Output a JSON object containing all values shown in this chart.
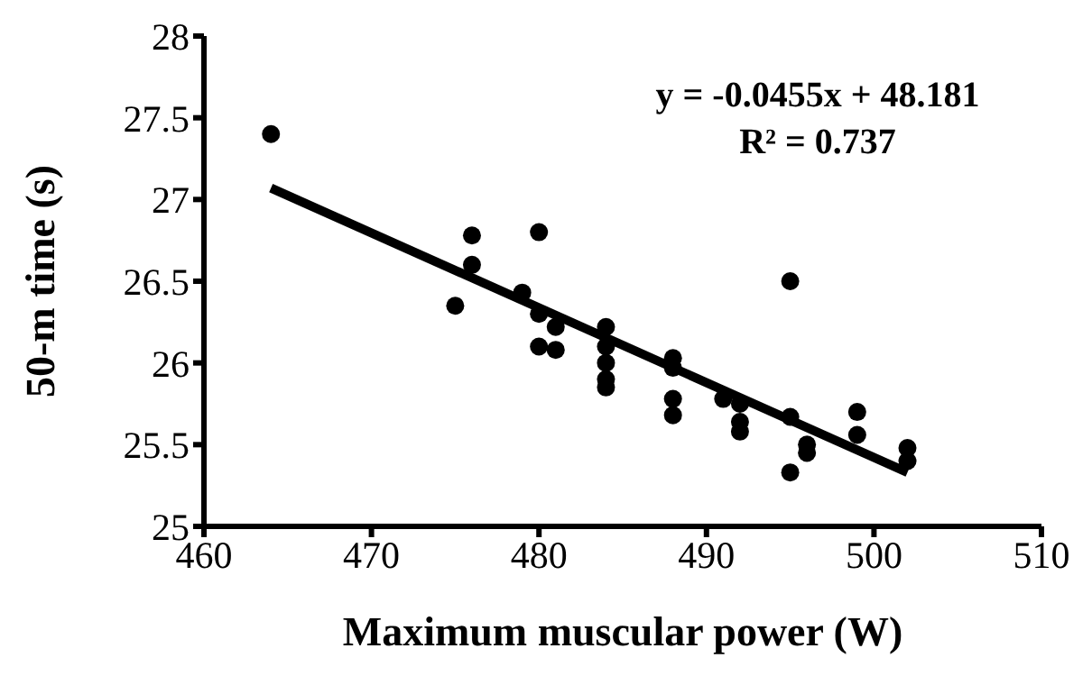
{
  "chart_data": {
    "type": "scatter",
    "xlabel": "Maximum muscular power (W)",
    "ylabel": "50-m time (s)",
    "xlim": [
      460,
      510
    ],
    "xticks": [
      460,
      470,
      480,
      490,
      500,
      510
    ],
    "ylim": [
      25,
      28
    ],
    "yticks": [
      25,
      25.5,
      26,
      26.5,
      27,
      27.5,
      28
    ],
    "grid": false,
    "legend": false,
    "marker": "circle",
    "annotations": [
      "y = -0.0455x + 48.181",
      "R² = 0.737"
    ],
    "series": [
      {
        "color": "#000000",
        "x": [
          464,
          475,
          476,
          476,
          479,
          480,
          480,
          480,
          481,
          481,
          484,
          484,
          484,
          484,
          484,
          488,
          488,
          488,
          488,
          491,
          492,
          492,
          492,
          495,
          495,
          495,
          496,
          496,
          499,
          499,
          502,
          502
        ],
        "values": [
          27.4,
          26.35,
          26.78,
          26.6,
          26.43,
          26.8,
          26.3,
          26.1,
          26.22,
          26.08,
          26.22,
          26.1,
          26.0,
          25.9,
          25.85,
          26.03,
          25.97,
          25.78,
          25.68,
          25.78,
          25.75,
          25.64,
          25.58,
          26.5,
          25.67,
          25.33,
          25.5,
          25.45,
          25.7,
          25.56,
          25.48,
          25.4
        ]
      },
      {
        "type": "line",
        "color": "#000000",
        "line_style": "solid",
        "marker": "none",
        "x": [
          464,
          502
        ],
        "values": [
          27.07,
          25.33
        ]
      }
    ]
  }
}
